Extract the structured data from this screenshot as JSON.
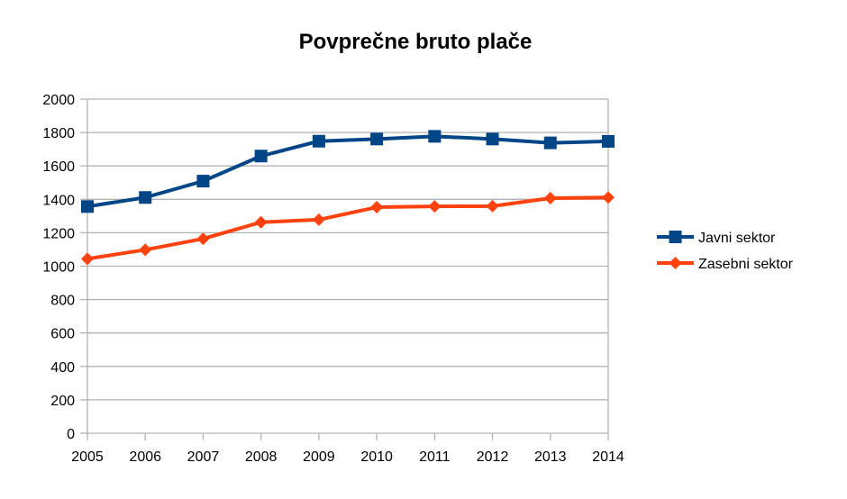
{
  "chart_data": {
    "type": "line",
    "title": "Povprečne bruto plače",
    "xlabel": "",
    "ylabel": "",
    "categories": [
      "2005",
      "2006",
      "2007",
      "2008",
      "2009",
      "2010",
      "2011",
      "2012",
      "2013",
      "2014"
    ],
    "series": [
      {
        "name": "Javni sektor",
        "color": "#004586",
        "marker": "square",
        "values": [
          1357,
          1411,
          1509,
          1659,
          1748,
          1761,
          1777,
          1761,
          1738,
          1747
        ]
      },
      {
        "name": "Zasebni sektor",
        "color": "#ff420e",
        "marker": "diamond",
        "values": [
          1044,
          1098,
          1164,
          1263,
          1278,
          1353,
          1358,
          1359,
          1407,
          1411
        ]
      }
    ],
    "ylim": [
      0,
      2000
    ],
    "yticks": [
      0,
      200,
      400,
      600,
      800,
      1000,
      1200,
      1400,
      1600,
      1800,
      2000
    ],
    "grid": true,
    "legend_position": "right"
  }
}
